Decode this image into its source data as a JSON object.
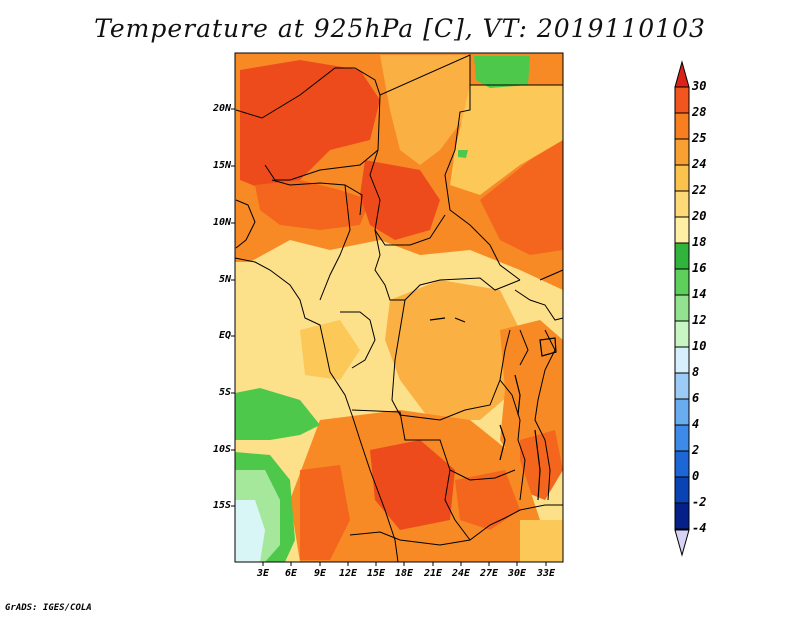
{
  "title": "Temperature at 925hPa [C], VT: 2019110103",
  "credit": "GrADS: IGES/COLA",
  "map": {
    "lat_labels": [
      "20N",
      "15N",
      "10N",
      "5N",
      "EQ",
      "5S",
      "10S",
      "15S"
    ],
    "lon_labels": [
      "3E",
      "6E",
      "9E",
      "12E",
      "15E",
      "18E",
      "21E",
      "24E",
      "27E",
      "30E",
      "33E"
    ]
  },
  "colorbar": {
    "labels": [
      "30",
      "28",
      "25",
      "24",
      "22",
      "20",
      "18",
      "16",
      "14",
      "12",
      "10",
      "8",
      "6",
      "4",
      "2",
      "0",
      "-2",
      "-4"
    ],
    "colors": [
      "#e8301c",
      "#f2561e",
      "#f77f1f",
      "#f9a032",
      "#fbc24e",
      "#fdda77",
      "#ffefa5",
      "#30b43c",
      "#5ecf5a",
      "#93e290",
      "#c8f5c3",
      "#d7eefc",
      "#9cccf5",
      "#6aacf0",
      "#3d8ae8",
      "#1c66d6",
      "#0a44b4",
      "#06208a"
    ],
    "top_arrow_color": "#d8221a",
    "bottom_arrow_color": "#d6d3f3"
  },
  "fill_colors": {
    "red": "#ee4b1c",
    "dark_orange": "#f4661e",
    "orange": "#f78a25",
    "light_orange": "#fbb043",
    "yellow_orange": "#fcc858",
    "yellow": "#fde08a",
    "green": "#4ec84a",
    "light_green": "#a6e89b",
    "pale_blue": "#d8f6f6"
  }
}
